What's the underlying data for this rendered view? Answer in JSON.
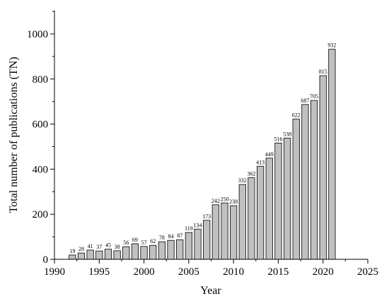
{
  "chart_data": {
    "type": "bar",
    "title": "",
    "xlabel": "Year",
    "ylabel": "Total number of publications (TN)",
    "xlim": [
      1990,
      2025
    ],
    "ylim": [
      0,
      1000
    ],
    "x_ticks": [
      "1990",
      "1995",
      "2000",
      "2005",
      "2010",
      "2015",
      "2020",
      "2025"
    ],
    "y_ticks": [
      "0",
      "200",
      "400",
      "600",
      "800",
      "1000"
    ],
    "grid": false,
    "legend": "none",
    "bar_color": "#c0c0c0",
    "bar_edge_color": "#000000",
    "x": [
      1992,
      1993,
      1994,
      1995,
      1996,
      1997,
      1998,
      1999,
      2000,
      2001,
      2002,
      2003,
      2004,
      2005,
      2006,
      2007,
      2008,
      2009,
      2010,
      2011,
      2012,
      2013,
      2014,
      2015,
      2016,
      2017,
      2018,
      2019,
      2020,
      2021
    ],
    "values": [
      19,
      28,
      41,
      37,
      45,
      38,
      56,
      69,
      57,
      62,
      78,
      84,
      87,
      119,
      134,
      173,
      242,
      250,
      238,
      332,
      362,
      413,
      449,
      516,
      538,
      622,
      687,
      705,
      815,
      932
    ]
  }
}
